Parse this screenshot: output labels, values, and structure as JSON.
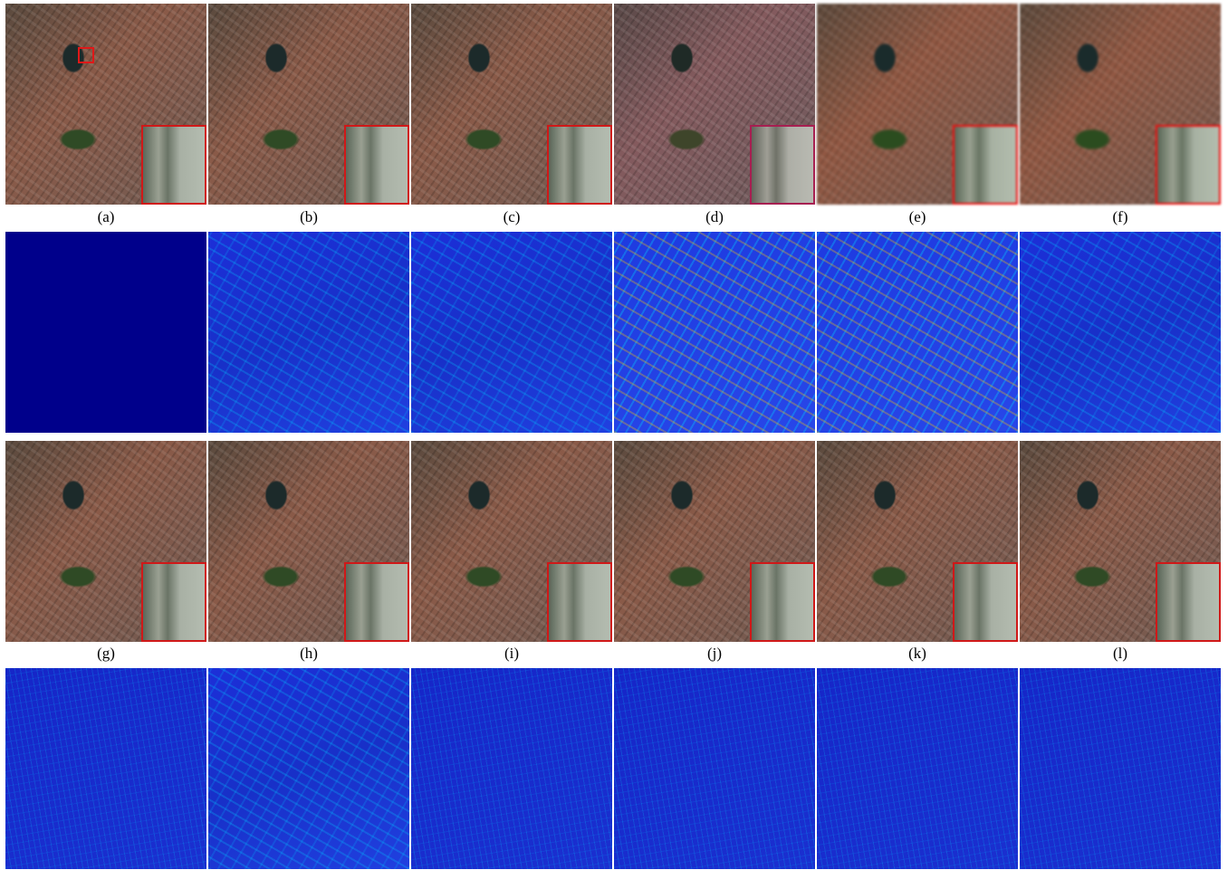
{
  "figure": {
    "labels": [
      "(a)",
      "(b)",
      "(c)",
      "(d)",
      "(e)",
      "(f)",
      "(g)",
      "(h)",
      "(i)",
      "(j)",
      "(k)",
      "(l)"
    ]
  }
}
